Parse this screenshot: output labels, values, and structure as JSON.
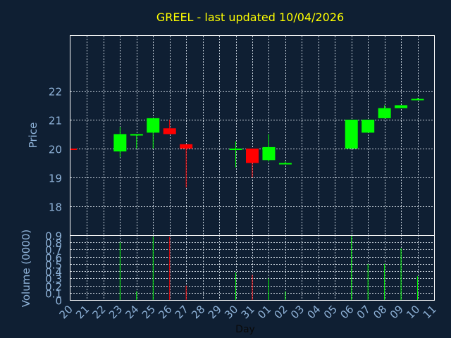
{
  "chart_data": {
    "type": "candlestick",
    "title": "GREEL - last updated 10/04/2026",
    "xlabel": "Day",
    "price_ylabel": "Price",
    "volume_ylabel": "Volume (0000)",
    "price_ylim": [
      17,
      23.9
    ],
    "price_ticks": [
      "18",
      "19",
      "20",
      "21",
      "22"
    ],
    "price_tick_values": [
      18,
      19,
      20,
      21,
      22
    ],
    "volume_ylim": [
      0,
      0.9
    ],
    "volume_ticks": [
      "0",
      "0.1",
      "0.2",
      "0.3",
      "0.4",
      "0.5",
      "0.6",
      "0.7",
      "0.8",
      "0.9"
    ],
    "volume_tick_values": [
      0,
      0.1,
      0.2,
      0.3,
      0.4,
      0.5,
      0.6,
      0.7,
      0.8,
      0.9
    ],
    "days": [
      "20",
      "21",
      "22",
      "23",
      "24",
      "25",
      "26",
      "27",
      "28",
      "29",
      "30",
      "31",
      "01",
      "02",
      "03",
      "04",
      "05",
      "06",
      "07",
      "08",
      "09",
      "10",
      "11"
    ],
    "grid": true,
    "colors": {
      "background": "#0f1f33",
      "up": "#00ff00",
      "down": "#ff0000",
      "title": "#ffff00",
      "axis_text": "#8fb3d9",
      "frame": "#ffffff"
    },
    "candles": [
      {
        "day": "20",
        "open": 20.0,
        "close": 19.95,
        "high": 20.0,
        "low": 19.95,
        "volume": 0.0
      },
      {
        "day": "23",
        "open": 19.9,
        "close": 20.5,
        "high": 20.75,
        "low": 19.7,
        "volume": 0.8
      },
      {
        "day": "24",
        "open": 20.45,
        "close": 20.5,
        "high": 20.5,
        "low": 20.0,
        "volume": 0.12
      },
      {
        "day": "25",
        "open": 20.55,
        "close": 21.05,
        "high": 21.05,
        "low": 20.0,
        "volume": 0.88
      },
      {
        "day": "26",
        "open": 20.7,
        "close": 20.5,
        "high": 21.0,
        "low": 20.5,
        "volume": 0.88
      },
      {
        "day": "27",
        "open": 20.15,
        "close": 20.0,
        "high": 20.15,
        "low": 18.65,
        "volume": 0.2
      },
      {
        "day": "30",
        "open": 19.95,
        "close": 20.0,
        "high": 20.25,
        "low": 19.35,
        "volume": 0.38
      },
      {
        "day": "31",
        "open": 20.0,
        "close": 19.5,
        "high": 20.0,
        "low": 19.0,
        "volume": 0.35
      },
      {
        "day": "01",
        "open": 19.6,
        "close": 20.05,
        "high": 20.5,
        "low": 19.55,
        "volume": 0.3
      },
      {
        "day": "02",
        "open": 19.45,
        "close": 19.5,
        "high": 19.55,
        "low": 19.45,
        "volume": 0.12
      },
      {
        "day": "06",
        "open": 20.0,
        "close": 21.0,
        "high": 21.0,
        "low": 20.0,
        "volume": 0.9
      },
      {
        "day": "07",
        "open": 20.55,
        "close": 21.0,
        "high": 21.0,
        "low": 20.55,
        "volume": 0.5
      },
      {
        "day": "08",
        "open": 21.05,
        "close": 21.4,
        "high": 21.5,
        "low": 21.05,
        "volume": 0.5
      },
      {
        "day": "09",
        "open": 21.4,
        "close": 21.5,
        "high": 21.5,
        "low": 21.4,
        "volume": 0.72
      },
      {
        "day": "10",
        "open": 21.7,
        "close": 21.72,
        "high": 21.75,
        "low": 21.7,
        "volume": 0.33
      }
    ]
  }
}
